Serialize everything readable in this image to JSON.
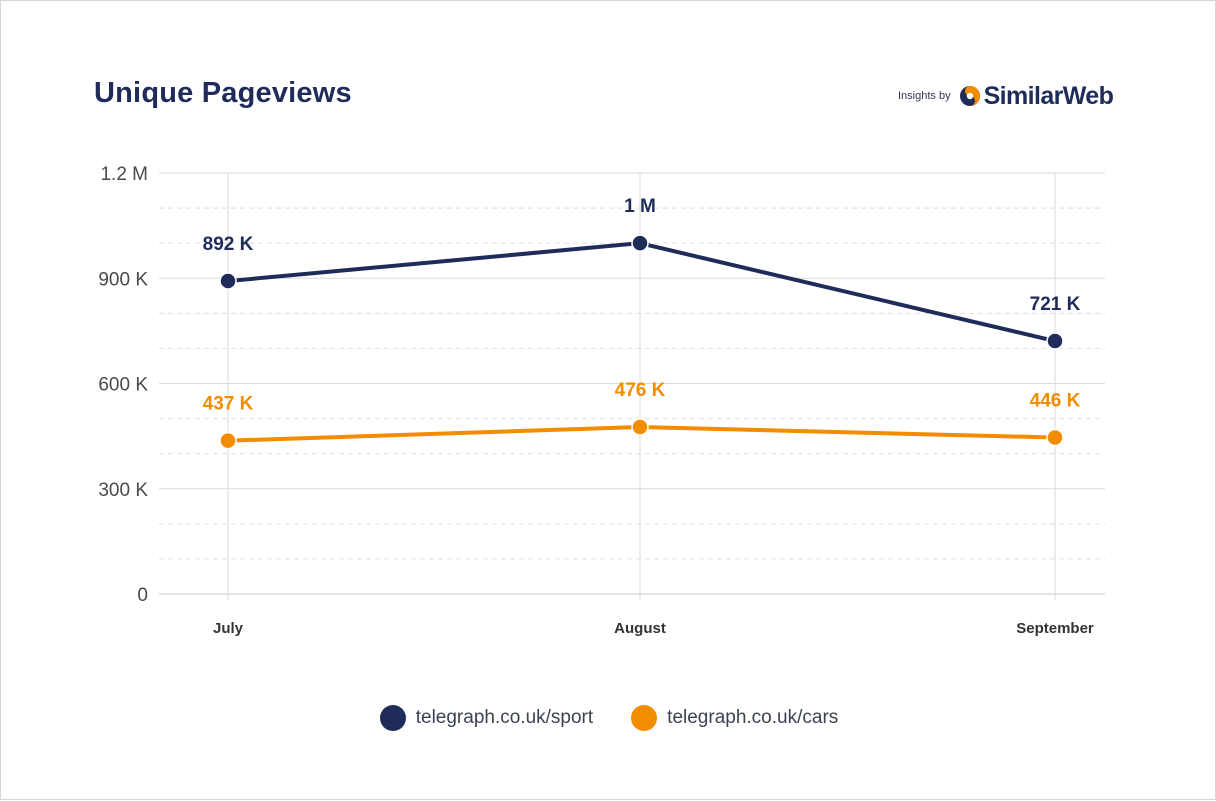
{
  "header": {
    "title": "Unique Pageviews",
    "brand_prefix": "Insights by",
    "brand_name": "SimilarWeb",
    "brand_icon": "similarweb-logo-icon"
  },
  "colors": {
    "series_sport": "#1f2c5a",
    "series_cars": "#f28c00",
    "grid": "#d9d9d9",
    "axis_text": "#4a4a4a"
  },
  "chart_data": {
    "type": "line",
    "title": "Unique Pageviews",
    "categories": [
      "July",
      "August",
      "September"
    ],
    "ylim": [
      0,
      1200000
    ],
    "yticks": [
      {
        "value": 0,
        "label": "0"
      },
      {
        "value": 300000,
        "label": "300 K"
      },
      {
        "value": 600000,
        "label": "600 K"
      },
      {
        "value": 900000,
        "label": "900 K"
      },
      {
        "value": 1200000,
        "label": "1.2 M"
      }
    ],
    "grid": true,
    "legend_position": "bottom",
    "series": [
      {
        "name": "telegraph.co.uk/sport",
        "color": "#1f2c5a",
        "values": [
          892000,
          1000000,
          721000
        ],
        "labels": [
          "892 K",
          "1 M",
          "721 K"
        ]
      },
      {
        "name": "telegraph.co.uk/cars",
        "color": "#f28c00",
        "values": [
          437000,
          476000,
          446000
        ],
        "labels": [
          "437 K",
          "476 K",
          "446 K"
        ]
      }
    ]
  }
}
